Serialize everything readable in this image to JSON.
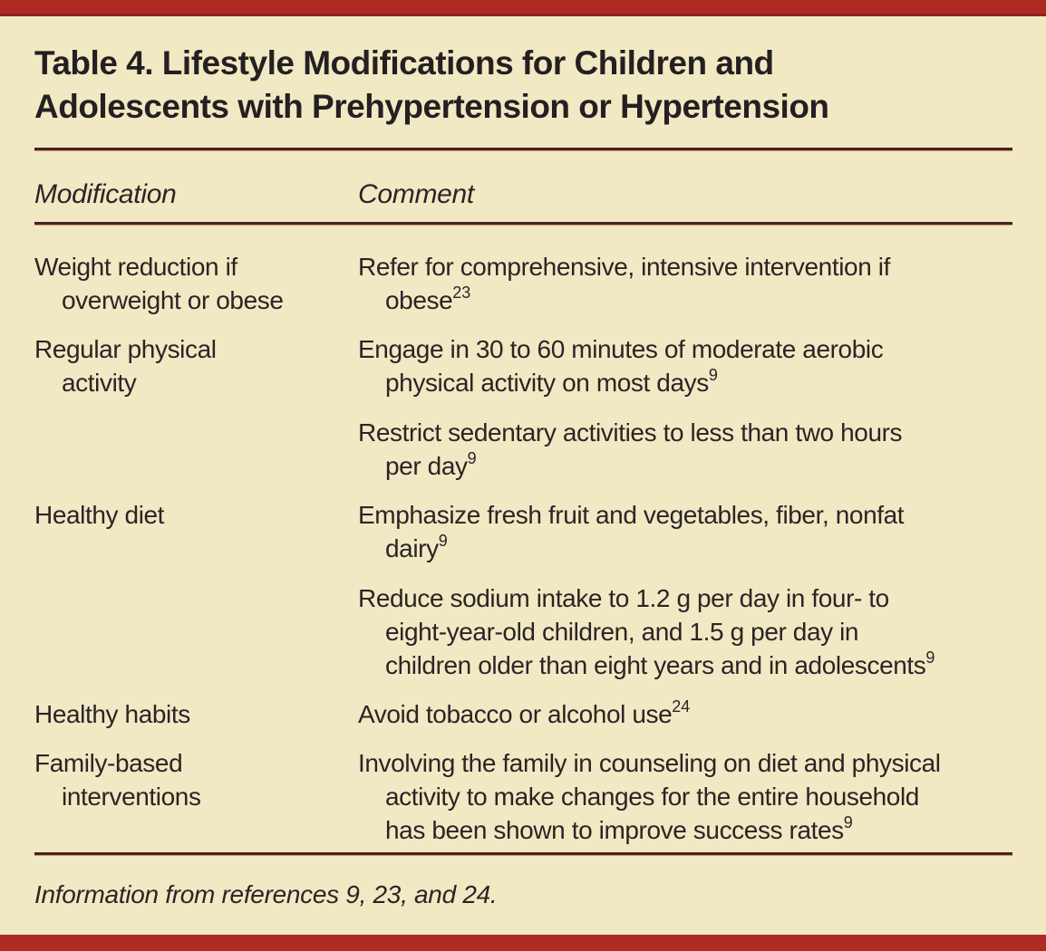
{
  "page": {
    "title": "Table 4. Lifestyle Modifications for Children and Adolescents with Prehypertension or Hypertension",
    "title_lines": [
      "Table 4. Lifestyle Modifications for Children and",
      "Adolescents with Prehypertension or Hypertension"
    ],
    "footnote": "Information from references 9, 23, and 24."
  },
  "colors": {
    "accent_red": "#AE2B24",
    "accent_red_dark_edge": "#8D2420",
    "background_cream": "#F1E9C3",
    "text_dark": "#2B2426",
    "rule_dark": "#46241F"
  },
  "table": {
    "columns": [
      "Modification",
      "Comment"
    ],
    "rows": [
      {
        "modification": {
          "lines": [
            "Weight reduction if",
            "overweight or obese"
          ]
        },
        "comments": [
          {
            "lines": [
              "Refer for comprehensive, intensive intervention if",
              "obese"
            ],
            "sup": "23"
          }
        ]
      },
      {
        "modification": {
          "lines": [
            "Regular physical",
            "activity"
          ]
        },
        "comments": [
          {
            "lines": [
              "Engage in 30 to 60 minutes of moderate aerobic",
              "physical activity on most days"
            ],
            "sup": "9"
          },
          {
            "lines": [
              "Restrict sedentary activities to less than two hours",
              "per day"
            ],
            "sup": "9"
          }
        ]
      },
      {
        "modification": {
          "lines": [
            "Healthy diet"
          ]
        },
        "comments": [
          {
            "lines": [
              "Emphasize fresh fruit and vegetables, fiber, nonfat",
              "dairy"
            ],
            "sup": "9"
          },
          {
            "lines": [
              "Reduce sodium intake to 1.2 g per day in four- to",
              "eight-year-old children, and 1.5 g per day in",
              "children older than eight years and in adolescents"
            ],
            "sup": "9"
          }
        ]
      },
      {
        "modification": {
          "lines": [
            "Healthy habits"
          ]
        },
        "comments": [
          {
            "lines": [
              "Avoid tobacco or alcohol use"
            ],
            "sup": "24"
          }
        ]
      },
      {
        "modification": {
          "lines": [
            "Family-based",
            "interventions"
          ]
        },
        "comments": [
          {
            "lines": [
              "Involving the family in counseling on diet and physical",
              "activity to make changes for the entire household",
              "has been shown to improve success rates"
            ],
            "sup": "9"
          }
        ]
      }
    ]
  }
}
